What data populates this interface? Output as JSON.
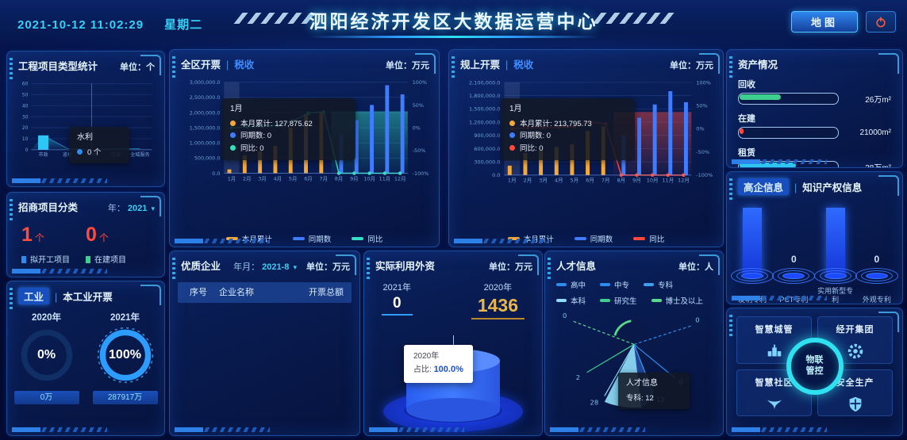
{
  "header": {
    "datetime": "2021-10-12 11:02:29",
    "weekday": "星期二",
    "title": "泗阳经济开发区大数据运营中心",
    "map_button": "地图"
  },
  "panels": {
    "project": {
      "title": "工程项目类型统计",
      "unit": "单位：个"
    },
    "investment": {
      "title": "招商项目分类",
      "year_label": "年：",
      "year_value": "2021"
    },
    "industry": {
      "tag": "工业",
      "title": "本工业开票"
    },
    "district": {
      "title": "全区开票",
      "subtitle": "税收",
      "unit": "单位：万元"
    },
    "scale": {
      "title": "规上开票",
      "subtitle": "税收",
      "unit": "单位：万元"
    },
    "quality": {
      "title": "优质企业",
      "period_label": "年月：",
      "period_value": "2021-8",
      "unit": "单位：万元",
      "columns": [
        "序号",
        "企业名称",
        "开票总额"
      ],
      "rows": []
    },
    "foreign": {
      "title": "实际利用外资",
      "unit": "单位：万元"
    },
    "talent": {
      "title": "人才信息",
      "unit": "单位：人"
    },
    "assets": {
      "title": "资产情况"
    },
    "ip": {
      "tag": "高企信息",
      "title": "知识产权信息"
    },
    "platforms": {
      "center_line1": "物联",
      "center_line2": "管控",
      "items": [
        {
          "label": "智慧城管",
          "icon": "building-icon"
        },
        {
          "label": "经开集团",
          "icon": "gear-icon"
        },
        {
          "label": "智慧社区",
          "icon": "bird-icon"
        },
        {
          "label": "安全生产",
          "icon": "shield-icon"
        }
      ]
    }
  },
  "investment_stats": [
    {
      "value": "1",
      "unit": "个",
      "label": "拟开工项目",
      "marker": "#2d8cf0"
    },
    {
      "value": "0",
      "unit": "个",
      "label": "在建项目",
      "marker": "#3ecf8e"
    }
  ],
  "industry_gauges": [
    {
      "year": "2020年",
      "percent": "0%",
      "value": "0万",
      "pct": 0
    },
    {
      "year": "2021年",
      "percent": "100%",
      "value": "287917万",
      "pct": 100
    }
  ],
  "assets_items": [
    {
      "label": "回收",
      "value": "26万m²",
      "pct": 42,
      "color": "#3ecf8e"
    },
    {
      "label": "在建",
      "value": "21000m²",
      "pct": 4,
      "color": "#ff4a3d"
    },
    {
      "label": "租赁",
      "value": "38万m²",
      "pct": 58,
      "color": "#2fc7f0"
    }
  ],
  "foreign_values": {
    "left_year": "2021年",
    "left_value": "0",
    "right_year": "2020年",
    "right_value": "1436",
    "tooltip_line1": "2020年",
    "tooltip_line2_label": "占比: ",
    "tooltip_line2_value": "100.0%"
  },
  "chart_data": [
    {
      "id": "project_types",
      "type": "bar",
      "title": "工程项目类型统计",
      "categories": [
        "市政",
        "道桥",
        "水利",
        "交通",
        "全域服务"
      ],
      "values": [
        13,
        1,
        0,
        1,
        1
      ],
      "ylim": [
        0,
        60
      ],
      "yticks": [
        "0",
        "10",
        "20",
        "30",
        "40",
        "50",
        "60"
      ],
      "bar_color": "#2ec6f5",
      "tooltip": {
        "title": "水利",
        "value": "0",
        "unit": "个",
        "dot_color": "#2d8cf0"
      }
    },
    {
      "id": "district_invoice",
      "type": "combo-bar-line",
      "title": "全区开票（税收）",
      "unit": "万元",
      "categories": [
        "1月",
        "2月",
        "3月",
        "4月",
        "5月",
        "6月",
        "7月",
        "8月",
        "9月",
        "10月",
        "11月",
        "12月"
      ],
      "series": [
        {
          "name": "本月累计",
          "kind": "bar",
          "color": "#f5a93b",
          "values": [
            127875.62,
            590000,
            730000,
            900000,
            1500000,
            1950000,
            2000000,
            0,
            0,
            0,
            0,
            0
          ]
        },
        {
          "name": "同期数",
          "kind": "bar",
          "color": "#3f7cff",
          "values": [
            0,
            0,
            0,
            0,
            0,
            0,
            0,
            1300000,
            1750000,
            2250000,
            2900000,
            2600000
          ]
        },
        {
          "name": "同比",
          "kind": "line",
          "axis": "right",
          "color": "#35e0c0",
          "values": [
            0,
            2,
            3,
            5,
            15,
            32,
            35,
            -100,
            -100,
            -100,
            -100,
            -100
          ]
        }
      ],
      "ylim_left": [
        0,
        3000000
      ],
      "yticks_left": [
        "0.0",
        "500,000.0",
        "1,000,000.0",
        "1,500,000.0",
        "2,000,000.0",
        "2,500,000.0",
        "3,000,000.0"
      ],
      "ylim_right": [
        -100,
        100
      ],
      "yticks_right": [
        "-100%",
        "-50%",
        "0%",
        "50%",
        "100%"
      ],
      "band_color": "#35e0c0",
      "tooltip": {
        "title": "1月",
        "rows": [
          {
            "color": "#f5a93b",
            "label": "本月累计: 127,875.62"
          },
          {
            "color": "#3f7cff",
            "label": "同期数: 0"
          },
          {
            "color": "#35e0c0",
            "label": "同比: 0"
          }
        ]
      }
    },
    {
      "id": "scale_invoice",
      "type": "combo-bar-line",
      "title": "规上开票（税收）",
      "unit": "万元",
      "categories": [
        "1月",
        "2月",
        "3月",
        "4月",
        "5月",
        "6月",
        "7月",
        "8月",
        "9月",
        "10月",
        "11月",
        "12月"
      ],
      "series": [
        {
          "name": "本月累计",
          "kind": "bar",
          "color": "#f5a93b",
          "values": [
            213795.73,
            500000,
            560000,
            640000,
            700000,
            1000000,
            1100000,
            0,
            0,
            0,
            0,
            0
          ]
        },
        {
          "name": "同期数",
          "kind": "bar",
          "color": "#3f7cff",
          "values": [
            0,
            0,
            0,
            0,
            0,
            0,
            0,
            900000,
            1300000,
            1600000,
            1900000,
            1650000
          ]
        },
        {
          "name": "同比",
          "kind": "line",
          "axis": "right",
          "color": "#ff4a3d",
          "values": [
            0,
            2,
            2,
            3,
            5,
            15,
            10,
            -100,
            -100,
            -100,
            -100,
            -100
          ]
        }
      ],
      "ylim_left": [
        0,
        2100000
      ],
      "yticks_left": [
        "0.0",
        "300,000.0",
        "600,000.0",
        "900,000.0",
        "1,200,000.0",
        "1,500,000.0",
        "1,800,000.0",
        "2,100,000.0"
      ],
      "ylim_right": [
        -100,
        100
      ],
      "yticks_right": [
        "-100%",
        "-50%",
        "0%",
        "50%",
        "100%"
      ],
      "band_color": "#ff4a3d",
      "tooltip": {
        "title": "1月",
        "rows": [
          {
            "color": "#f5a93b",
            "label": "本月累计: 213,795.73"
          },
          {
            "color": "#3f7cff",
            "label": "同期数: 0"
          },
          {
            "color": "#ff4a3d",
            "label": "同比: 0"
          }
        ]
      }
    },
    {
      "id": "talent",
      "type": "radar",
      "title": "人才信息",
      "unit": "人",
      "categories": [
        "高中",
        "中专",
        "专科",
        "本科",
        "研究生",
        "博士及以上"
      ],
      "values": [
        0,
        0,
        12,
        28,
        2,
        0
      ],
      "colors": [
        "#2d8cf0",
        "#2d8cf0",
        "#3aa0f0",
        "#8fdcf8",
        "#3ecf8e",
        "#59d98c"
      ],
      "tooltip": {
        "title": "人才信息",
        "row": "专科: 12"
      }
    },
    {
      "id": "ip_info",
      "type": "bar",
      "title": "知识产权信息",
      "categories": [
        "发明专利",
        "PCT专利",
        "实用新型专利",
        "外观专利"
      ],
      "values": [
        null,
        0,
        null,
        0
      ],
      "display": [
        "",
        "0",
        "",
        "0"
      ],
      "tall": [
        true,
        false,
        true,
        false
      ]
    },
    {
      "id": "foreign_capital",
      "type": "pie",
      "title": "实际利用外资",
      "unit": "万元",
      "categories": [
        "2021年",
        "2020年"
      ],
      "values": [
        0,
        1436
      ]
    },
    {
      "id": "industry_gauges",
      "type": "gauge",
      "categories": [
        "2020年",
        "2021年"
      ],
      "values": [
        0,
        100
      ]
    },
    {
      "id": "assets",
      "type": "bar",
      "categories": [
        "回收",
        "在建",
        "租赁"
      ],
      "values": [
        "26万m²",
        "21000m²",
        "38万m²"
      ]
    }
  ]
}
